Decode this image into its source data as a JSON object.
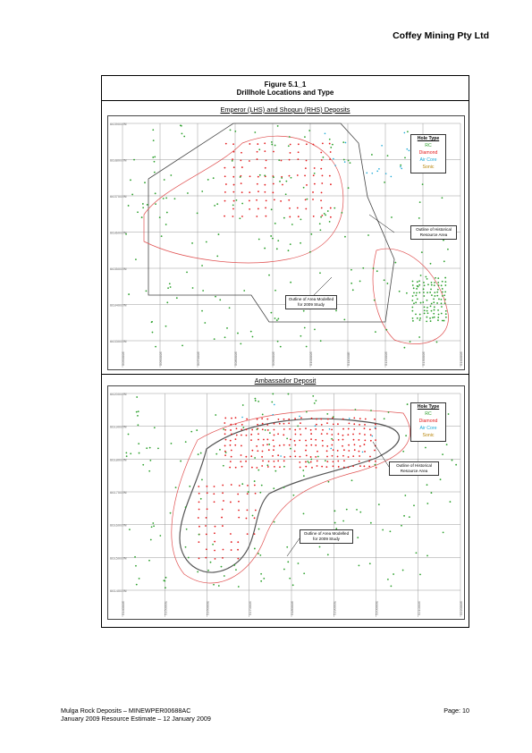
{
  "header": {
    "company": "Coffey Mining Pty Ltd"
  },
  "figure": {
    "number": "Figure 5.1_1",
    "title": "Drillhole Locations and Type"
  },
  "maps": [
    {
      "title": "Emperor (LHS) and Shogun (RHS) Deposits",
      "northings": [
        "6639000N",
        "6638000N",
        "6637000N",
        "6636000N",
        "6635000N",
        "6634000N",
        "6633000N"
      ],
      "eastings": [
        "505000E",
        "506000E",
        "507000E",
        "508000E",
        "509000E",
        "510000E",
        "511000E",
        "512000E",
        "513000E",
        "514000E"
      ],
      "legend": {
        "title": "Hole Type",
        "items": [
          {
            "label": "RC",
            "color": "#2ca02c"
          },
          {
            "label": "Diamond",
            "color": "#e41a1c"
          },
          {
            "label": "Air Core",
            "color": "#17a7d6"
          },
          {
            "label": "Sonic",
            "color": "#d4a017"
          }
        ]
      },
      "callouts": [
        {
          "name": "historical-resource-callout",
          "lines": [
            "Outline of Historical",
            "Resource Area"
          ]
        },
        {
          "name": "modelled-area-callout",
          "lines": [
            "Outline of Area Modelled",
            "for 2009 Study"
          ]
        }
      ]
    },
    {
      "title": "Ambassador Deposit",
      "northings": [
        "6620000N",
        "6619000N",
        "6618000N",
        "6617000N",
        "6616000N",
        "6615000N",
        "6614000N"
      ],
      "eastings": [
        "514000E",
        "515000E",
        "516000E",
        "517000E",
        "518000E",
        "519000E",
        "520000E",
        "521000E",
        "522000E"
      ],
      "legend": {
        "title": "Hole Type",
        "items": [
          {
            "label": "RC",
            "color": "#2ca02c"
          },
          {
            "label": "Diamond",
            "color": "#e41a1c"
          },
          {
            "label": "Air Core",
            "color": "#17a7d6"
          },
          {
            "label": "Sonic",
            "color": "#d4a017"
          }
        ]
      },
      "callouts": [
        {
          "name": "historical-resource-callout",
          "lines": [
            "Outline of Historical",
            "Resource Area"
          ]
        },
        {
          "name": "modelled-area-callout",
          "lines": [
            "Outline of Area Modelled",
            "for 2009 Study"
          ]
        }
      ]
    }
  ],
  "footer": {
    "doc_line1": "Mulga Rock Deposits – MINEWPER00688AC",
    "doc_line2": "January 2009 Resource Estimate – 12 January 2009",
    "page": "Page:  10"
  }
}
